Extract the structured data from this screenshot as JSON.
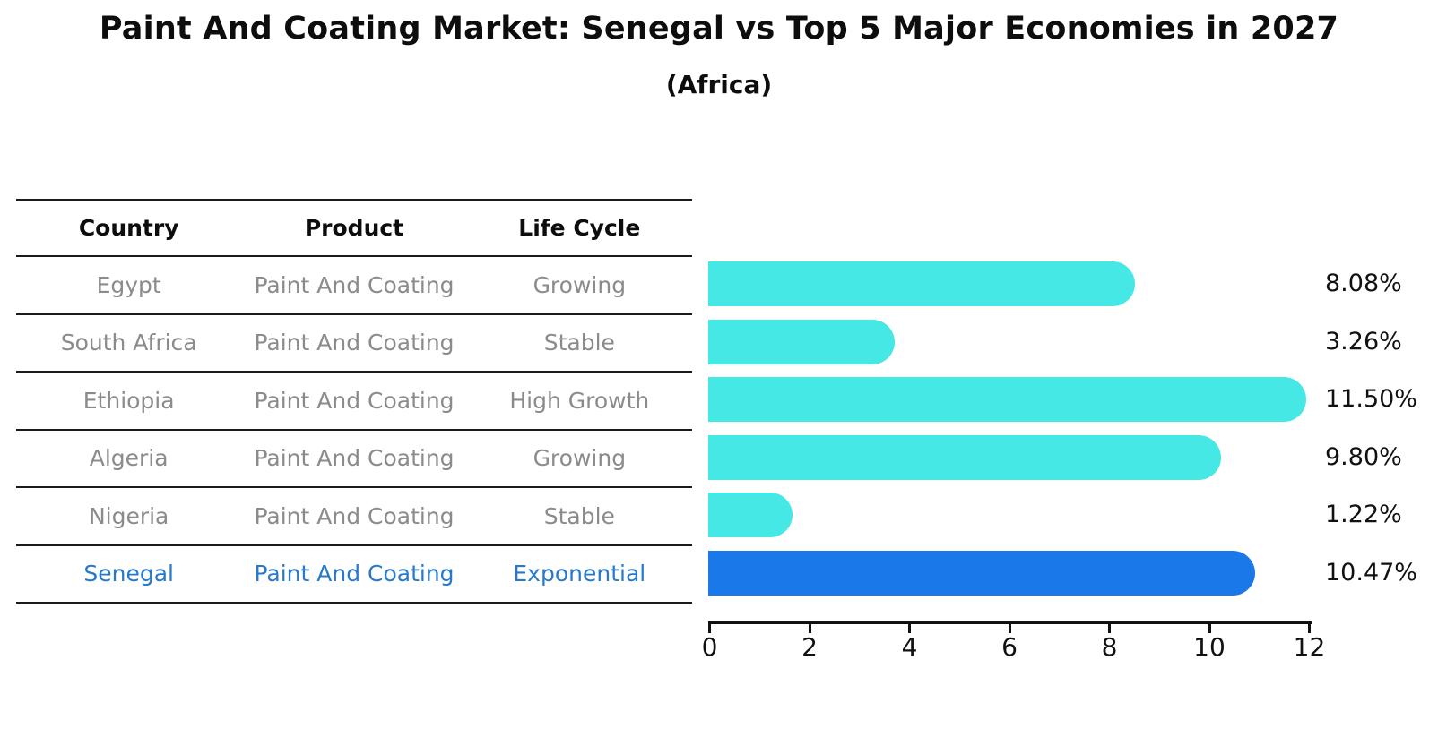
{
  "title": "Paint And Coating Market: Senegal vs Top 5 Major Economies in 2027",
  "subtitle": "(Africa)",
  "colors": {
    "bar_default": "#45E8E4",
    "bar_highlight": "#1B78E8",
    "highlight_text": "#2878CB",
    "table_text": "#8B8B8B",
    "header_text": "#0D0D0D",
    "axis": "#111111",
    "grid_line": "#1A1A1A"
  },
  "table": {
    "headers": [
      "Country",
      "Product",
      "Life Cycle"
    ],
    "rows": [
      {
        "country": "Egypt",
        "product": "Paint And Coating",
        "life_cycle": "Growing",
        "highlight": false
      },
      {
        "country": "South Africa",
        "product": "Paint And Coating",
        "life_cycle": "Stable",
        "highlight": false
      },
      {
        "country": "Ethiopia",
        "product": "Paint And Coating",
        "life_cycle": "High Growth",
        "highlight": false
      },
      {
        "country": "Algeria",
        "product": "Paint And Coating",
        "life_cycle": "Growing",
        "highlight": false
      },
      {
        "country": "Nigeria",
        "product": "Paint And Coating",
        "life_cycle": "Stable",
        "highlight": false
      },
      {
        "country": "Senegal",
        "product": "Paint And Coating",
        "life_cycle": "Exponential",
        "highlight": true
      }
    ]
  },
  "chart_data": {
    "type": "bar",
    "orientation": "horizontal",
    "title": "Paint And Coating Market: Senegal vs Top 5 Major Economies in 2027",
    "subtitle": "(Africa)",
    "categories": [
      "Egypt",
      "South Africa",
      "Ethiopia",
      "Algeria",
      "Nigeria",
      "Senegal"
    ],
    "values": [
      8.08,
      3.26,
      11.5,
      9.8,
      1.22,
      10.47
    ],
    "value_labels": [
      "8.08%",
      "3.26%",
      "11.50%",
      "9.80%",
      "1.22%",
      "10.47%"
    ],
    "xlabel": "",
    "ylabel": "",
    "xlim": [
      0,
      12
    ],
    "xticks": [
      0,
      2,
      4,
      6,
      8,
      10,
      12
    ],
    "grid": false,
    "legend": false,
    "highlight_index": 5,
    "bar_color": "#45E8E4",
    "highlight_color": "#1B78E8"
  }
}
